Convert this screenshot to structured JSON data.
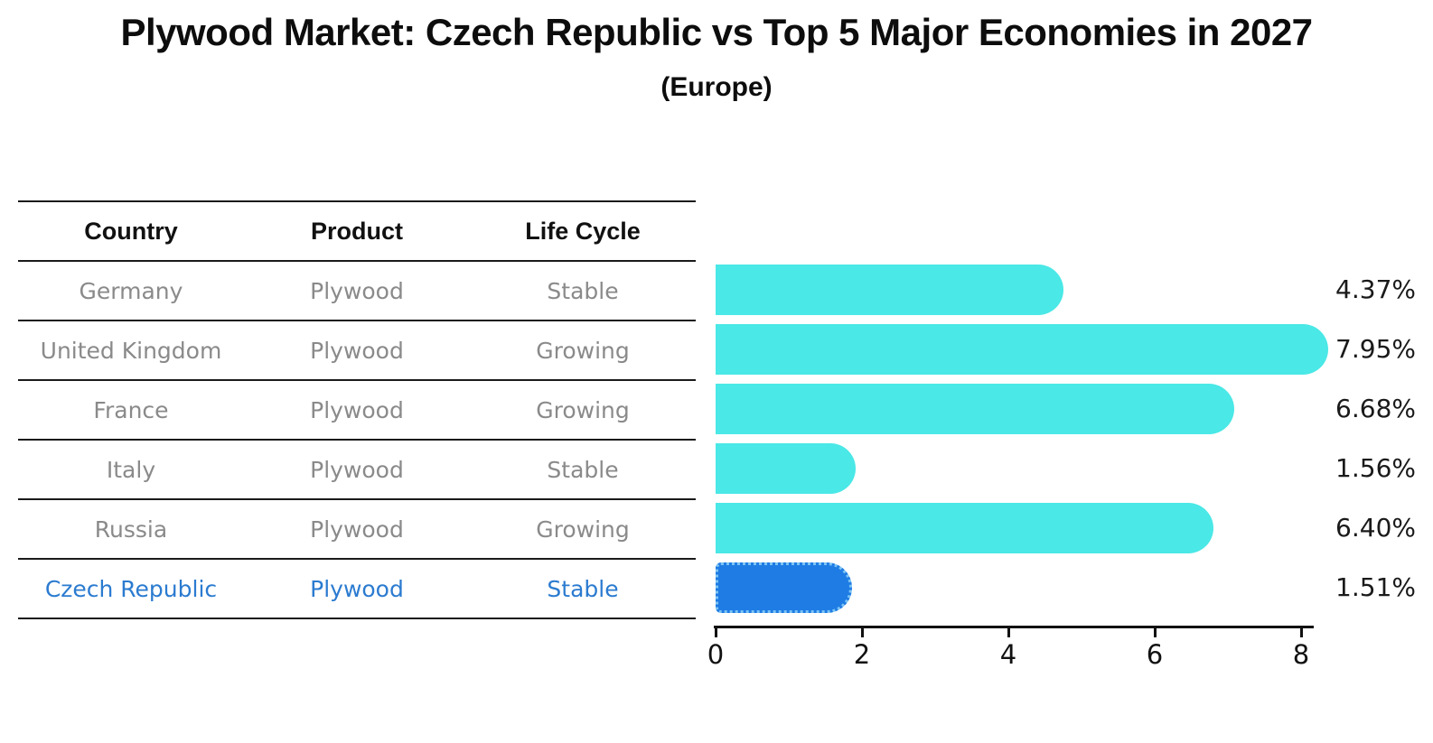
{
  "title": "Plywood Market: Czech Republic vs Top 5 Major Economies in 2027",
  "subtitle": "(Europe)",
  "table": {
    "headers": [
      "Country",
      "Product",
      "Life Cycle"
    ],
    "rows": [
      {
        "country": "Germany",
        "product": "Plywood",
        "life_cycle": "Stable"
      },
      {
        "country": "United Kingdom",
        "product": "Plywood",
        "life_cycle": "Growing"
      },
      {
        "country": "France",
        "product": "Plywood",
        "life_cycle": "Growing"
      },
      {
        "country": "Italy",
        "product": "Plywood",
        "life_cycle": "Stable"
      },
      {
        "country": "Russia",
        "product": "Plywood",
        "life_cycle": "Growing"
      },
      {
        "country": "Czech Republic",
        "product": "Plywood",
        "life_cycle": "Stable"
      }
    ],
    "highlight_row_index": 5
  },
  "chart_data": {
    "type": "bar",
    "orientation": "horizontal",
    "title": "Plywood Market: Czech Republic vs Top 5 Major Economies in 2027",
    "subtitle": "(Europe)",
    "categories": [
      "Germany",
      "United Kingdom",
      "France",
      "Italy",
      "Russia",
      "Czech Republic"
    ],
    "values": [
      4.37,
      7.95,
      6.68,
      1.56,
      6.4,
      1.51
    ],
    "value_labels": [
      "4.37%",
      "7.95%",
      "6.68%",
      "1.56%",
      "6.40%",
      "1.51%"
    ],
    "xlim": [
      0,
      8.1
    ],
    "xticks": [
      "0",
      "2",
      "4",
      "6",
      "8"
    ],
    "grid": false,
    "legend": false,
    "highlight_index": 5,
    "bar_color": "#4AE8E6",
    "highlight_bar_color": "#1F7CE4",
    "highlight_border_color": "#7CC4F5",
    "highlight_text_color": "#2B7BD0",
    "text_color_muted": "#8A8A8A"
  }
}
